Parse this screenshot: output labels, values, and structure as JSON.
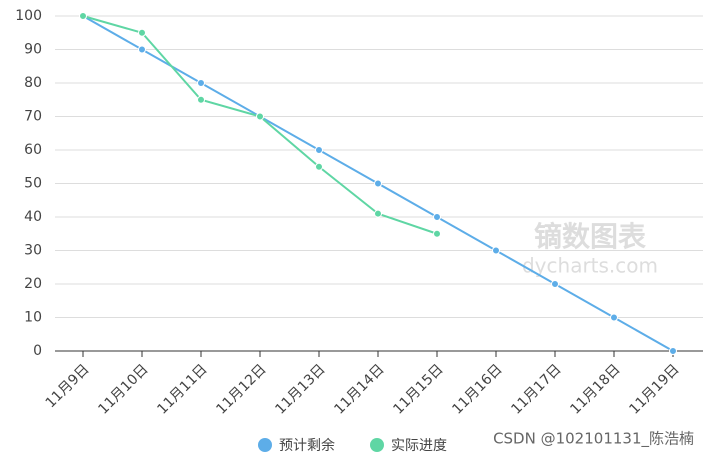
{
  "chart_data": {
    "type": "line",
    "categories": [
      "11月9日",
      "11月10日",
      "11月11日",
      "11月12日",
      "11月13日",
      "11月14日",
      "11月15日",
      "11月16日",
      "11月17日",
      "11月18日",
      "11月19日"
    ],
    "series": [
      {
        "name": "预计剩余",
        "color": "#5dade8",
        "values": [
          100,
          90,
          80,
          70,
          60,
          50,
          40,
          30,
          20,
          10,
          0
        ]
      },
      {
        "name": "实际进度",
        "color": "#5fd6a4",
        "values": [
          100,
          95,
          75,
          70,
          55,
          41,
          35,
          null,
          null,
          null,
          null
        ]
      }
    ],
    "ylim": [
      0,
      100
    ],
    "yticks": [
      0,
      10,
      20,
      30,
      40,
      50,
      60,
      70,
      80,
      90,
      100
    ],
    "grid": true,
    "legend": "bottom",
    "annotations": [
      "镝数图表",
      "dycharts.com",
      "CSDN @102101131_陈浩楠"
    ]
  }
}
